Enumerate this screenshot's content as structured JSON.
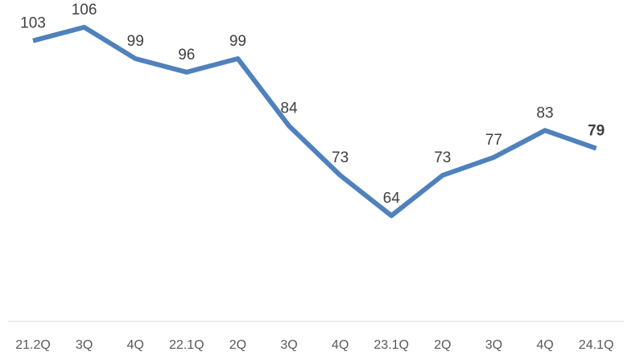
{
  "chart_data": {
    "type": "line",
    "title": "",
    "xlabel": "",
    "ylabel": "",
    "categories": [
      "21.2Q",
      "3Q",
      "4Q",
      "22.1Q",
      "2Q",
      "3Q",
      "4Q",
      "23.1Q",
      "2Q",
      "3Q",
      "4Q",
      "24.1Q"
    ],
    "values": [
      103,
      106,
      99,
      96,
      99,
      84,
      73,
      64,
      73,
      77,
      83,
      79
    ],
    "data_labels": [
      "103",
      "106",
      "99",
      "96",
      "99",
      "84",
      "73",
      "64",
      "73",
      "77",
      "83",
      "79"
    ],
    "highlight_index": 11,
    "ylim": [
      51,
      111
    ],
    "grid": false,
    "legend": "none",
    "colors": {
      "line": "#4f81bd",
      "label": "#404040",
      "highlight": "#c00000",
      "tick": "#595959",
      "axis": "#d9d9d9"
    }
  }
}
